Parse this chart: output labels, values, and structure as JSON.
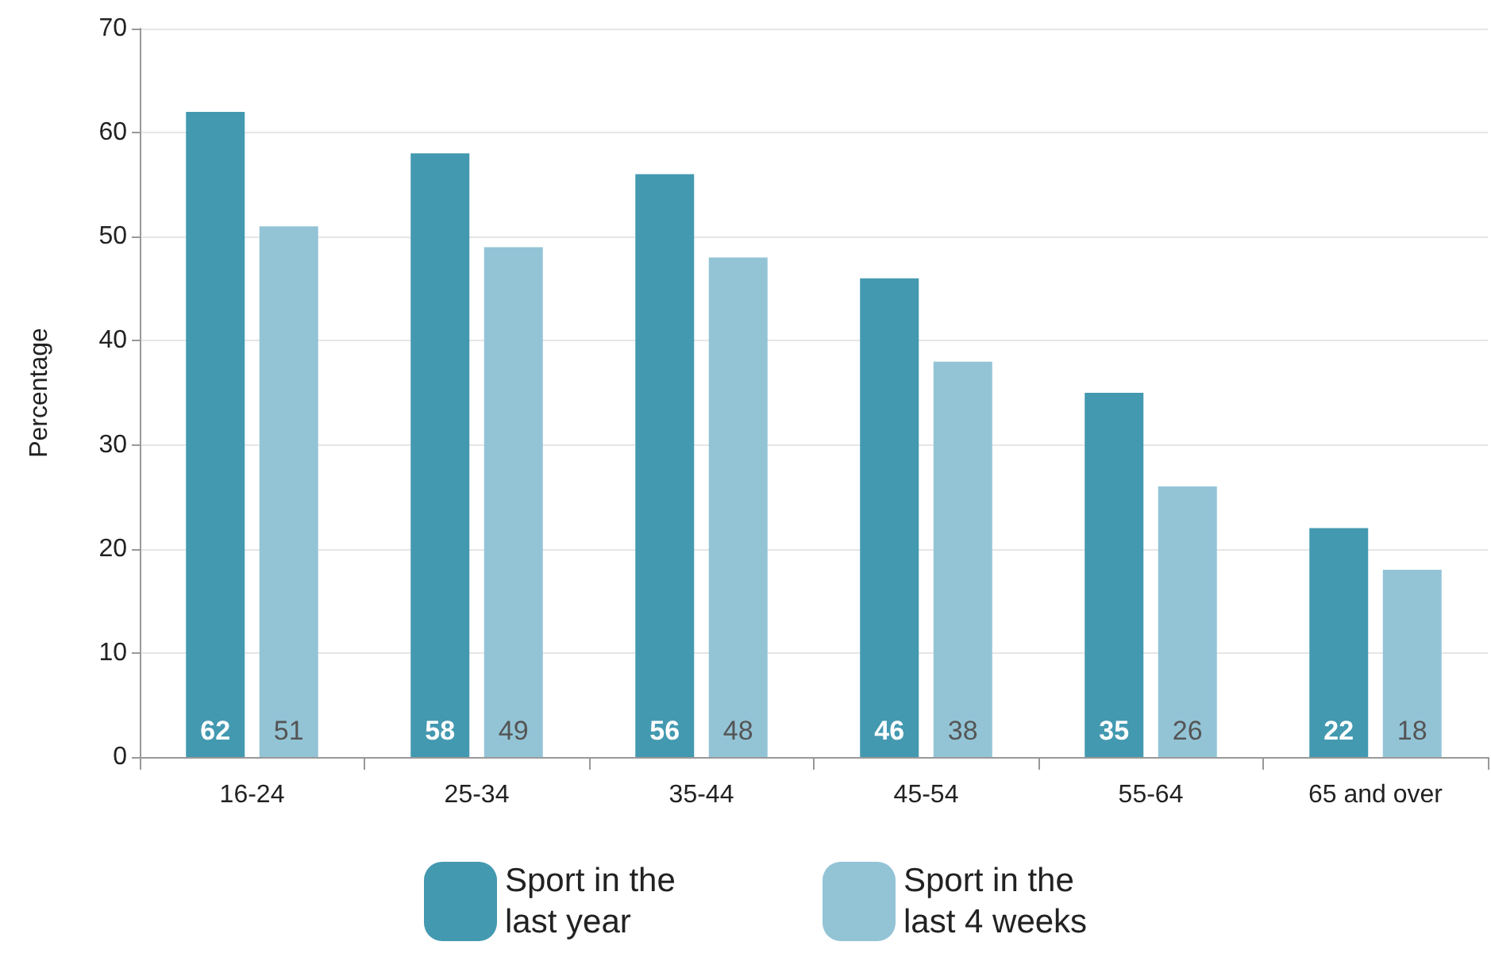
{
  "chart_data": {
    "type": "bar",
    "ylabel": "Percentage",
    "categories": [
      "16-24",
      "25-34",
      "35-44",
      "45-54",
      "55-64",
      "65 and over"
    ],
    "series": [
      {
        "name": "Sport in the last year",
        "color": "#4399b0",
        "values": [
          62,
          58,
          56,
          46,
          35,
          22
        ]
      },
      {
        "name": "Sport in the last 4 weeks",
        "color": "#93c4d6",
        "values": [
          51,
          49,
          48,
          38,
          26,
          18
        ]
      }
    ],
    "ylim": [
      0,
      70
    ],
    "yticks": [
      0,
      10,
      20,
      30,
      40,
      50,
      60,
      70
    ],
    "grid": "y",
    "legend": "bottom",
    "data_labels": true
  }
}
